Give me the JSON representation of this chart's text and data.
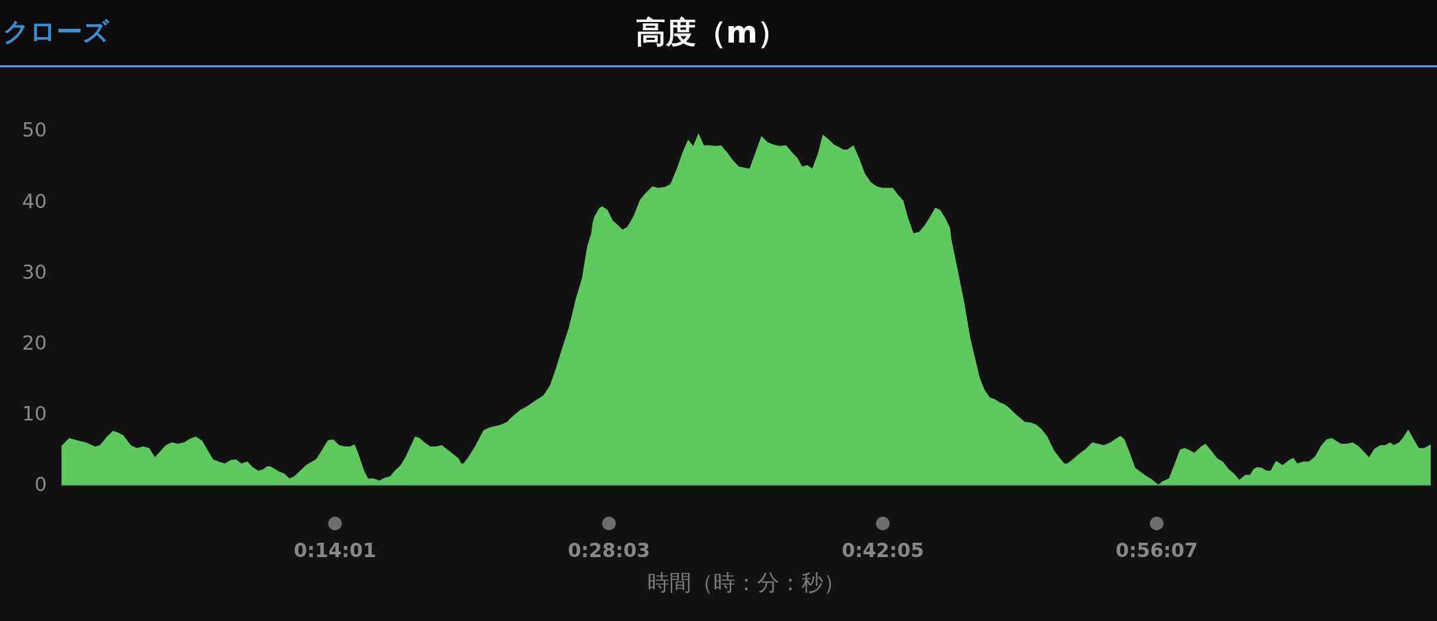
{
  "chart_data": {
    "type": "area",
    "title": "高度（m）",
    "xlabel": "時間（時：分：秒）",
    "annotations": [
      "クローズ"
    ],
    "x": [
      0,
      0.0066,
      0.0106,
      0.0207,
      0.0288,
      0.0329,
      0.0389,
      0.044,
      0.048,
      0.0527,
      0.0591,
      0.0642,
      0.0697,
      0.0749,
      0.0798,
      0.0891,
      0.0941,
      0.0992,
      0.1047,
      0.1097,
      0.1148,
      0.1202,
      0.1295,
      0.134,
      0.1394,
      0.1445,
      0.149,
      0.1538,
      0.1587,
      0.1633,
      0.168,
      0.1724,
      0.1754,
      0.1785,
      0.1856,
      0.1902,
      0.1947,
      0.1987,
      0.2032,
      0.2088,
      0.2173,
      0.2224,
      0.2276,
      0.2321,
      0.2371,
      0.2422,
      0.2462,
      0.2503,
      0.2533,
      0.2584,
      0.2618,
      0.2665,
      0.2715,
      0.276,
      0.2806,
      0.2847,
      0.2897,
      0.2938,
      0.3019,
      0.3059,
      0.3099,
      0.315,
      0.3196,
      0.3247,
      0.3302,
      0.3393,
      0.3413,
      0.3433,
      0.3474,
      0.3534,
      0.3605,
      0.3656,
      0.3757,
      0.3807,
      0.3828,
      0.3919,
      0.3969,
      0.403,
      0.4115,
      0.4171,
      0.4222,
      0.4272,
      0.4333,
      0.439,
      0.4444,
      0.4489,
      0.4525,
      0.4535,
      0.4552,
      0.4592,
      0.4616,
      0.4663,
      0.4707,
      0.4792,
      0.4832,
      0.4885,
      0.494,
      0.4984,
      0.5047,
      0.5098,
      0.5148,
      0.5199,
      0.5253,
      0.5304,
      0.5351,
      0.5395,
      0.544,
      0.5486,
      0.5536,
      0.5583,
      0.5634,
      0.5688,
      0.5739,
      0.5785,
      0.5876,
      0.5931,
      0.5977,
      0.6032,
      0.6083,
      0.6133,
      0.6188,
      0.6234,
      0.6285,
      0.6325,
      0.637,
      0.6412,
      0.6461,
      0.6501,
      0.6548,
      0.6598,
      0.6679,
      0.671,
      0.6764,
      0.6811,
      0.6861,
      0.6912,
      0.6962,
      0.7012,
      0.71,
      0.714,
      0.7189,
      0.7229,
      0.7276,
      0.7326,
      0.7371,
      0.7417,
      0.7462,
      0.7504,
      0.7549,
      0.7589,
      0.7599,
      0.765,
      0.7711,
      0.7761,
      0.7842,
      0.7883,
      0.7929,
      0.797,
      0.8014,
      0.805,
      0.8091,
      0.8146,
      0.8226,
      0.8277,
      0.8323,
      0.8368,
      0.8419,
      0.8475,
      0.852,
      0.8564,
      0.859,
      0.8651,
      0.8702,
      0.8748,
      0.8803,
      0.8902,
      0.8957,
      0.9043,
      0.9078,
      0.9124,
      0.9169,
      0.926,
      0.931,
      0.9367,
      0.9401,
      0.9458,
      0.9553,
      0.9593,
      0.9634,
      0.9674,
      0.9731,
      0.977,
      0.9816,
      0.9871,
      0.9917,
      0.9968,
      1.0012,
      1.0059,
      1.0109,
      1.015,
      1.018,
      1.021,
      1.0251,
      1.0291,
      1.0326,
      1.0372,
      1.0427,
      1.0484,
      1.052,
      1.0554,
      1.0605,
      1.0655,
      1.0706,
      1.0756,
      1.0803,
      1.0847,
      1.0928,
      1.0979,
      1.1026,
      1.108,
      1.1121,
      1.1167,
      1.1212,
      1.1262,
      1.1302,
      1.1349,
      1.1377,
      1.1424,
      1.1458,
      1.1501,
      1.1545,
      1.1592,
      1.1636,
      1.1693
    ],
    "values": [
      5.5,
      6.6,
      6.4,
      6.0,
      5.4,
      5.6,
      6.8,
      7.6,
      7.4,
      7.0,
      5.6,
      5.2,
      5.4,
      5.2,
      3.9,
      5.6,
      6.0,
      5.8,
      6.0,
      6.5,
      6.8,
      6.2,
      3.6,
      3.3,
      3.0,
      3.5,
      3.6,
      3.0,
      3.3,
      2.5,
      2.0,
      2.2,
      2.6,
      2.6,
      1.9,
      1.6,
      0.9,
      1.2,
      1.9,
      2.8,
      3.6,
      4.9,
      6.3,
      6.4,
      5.6,
      5.4,
      5.4,
      5.7,
      4.5,
      2.0,
      0.9,
      0.9,
      0.6,
      1.0,
      1.2,
      2.0,
      2.8,
      3.9,
      6.8,
      6.6,
      6.0,
      5.4,
      5.4,
      5.6,
      4.9,
      3.7,
      3.0,
      3.0,
      3.9,
      5.5,
      7.7,
      8.1,
      8.5,
      8.9,
      9.3,
      10.6,
      11.0,
      11.7,
      12.6,
      14.0,
      16.4,
      19.1,
      22.2,
      26.1,
      29.1,
      33.6,
      35.6,
      36.9,
      37.9,
      39.0,
      39.3,
      38.8,
      37.3,
      36.0,
      36.4,
      37.9,
      40.2,
      41.1,
      42.1,
      41.9,
      42.0,
      42.4,
      44.5,
      46.9,
      48.7,
      47.8,
      49.6,
      47.9,
      47.9,
      47.8,
      47.9,
      46.8,
      45.7,
      44.9,
      44.6,
      47.1,
      49.2,
      48.3,
      48.0,
      47.8,
      47.9,
      47.0,
      46.1,
      44.9,
      45.1,
      44.6,
      46.8,
      49.4,
      48.8,
      48.0,
      47.3,
      47.3,
      47.9,
      46.1,
      43.9,
      42.7,
      42.1,
      41.9,
      41.9,
      41.0,
      40.1,
      37.7,
      35.5,
      35.7,
      36.6,
      37.8,
      39.1,
      38.8,
      37.6,
      36.2,
      34.7,
      30.6,
      25.6,
      20.7,
      15.1,
      13.4,
      12.3,
      12.1,
      11.6,
      11.4,
      10.9,
      10.0,
      8.9,
      8.8,
      8.5,
      7.9,
      6.8,
      4.9,
      3.9,
      3.0,
      3.0,
      3.8,
      4.5,
      5.1,
      6.0,
      5.6,
      6.0,
      6.9,
      6.4,
      4.5,
      2.4,
      1.3,
      0.8,
      0.0,
      0.5,
      0.9,
      5.0,
      5.2,
      4.9,
      4.5,
      5.4,
      5.8,
      4.9,
      3.7,
      3.3,
      2.2,
      1.6,
      0.7,
      1.4,
      1.4,
      2.2,
      2.5,
      2.4,
      2.0,
      2.0,
      3.4,
      2.8,
      3.5,
      3.8,
      3.0,
      3.3,
      3.3,
      4.0,
      5.5,
      6.4,
      6.6,
      5.8,
      5.8,
      6.0,
      5.4,
      4.7,
      3.9,
      5.1,
      5.6,
      5.6,
      6.0,
      5.6,
      6.0,
      6.7,
      7.8,
      6.5,
      5.2,
      5.2,
      5.7
    ],
    "color": "#5fc95f",
    "xlim": [
      0,
      1.1694
    ],
    "ylim": [
      0,
      50
    ],
    "xticks": [
      {
        "value": 0.2336,
        "label": "0:14:01"
      },
      {
        "value": 0.4675,
        "label": "0:28:03"
      },
      {
        "value": 0.7014,
        "label": "0:42:05"
      },
      {
        "value": 0.9353,
        "label": "0:56:07"
      }
    ],
    "yticks": [
      0,
      10,
      20,
      30,
      40,
      50
    ],
    "grid": false
  }
}
